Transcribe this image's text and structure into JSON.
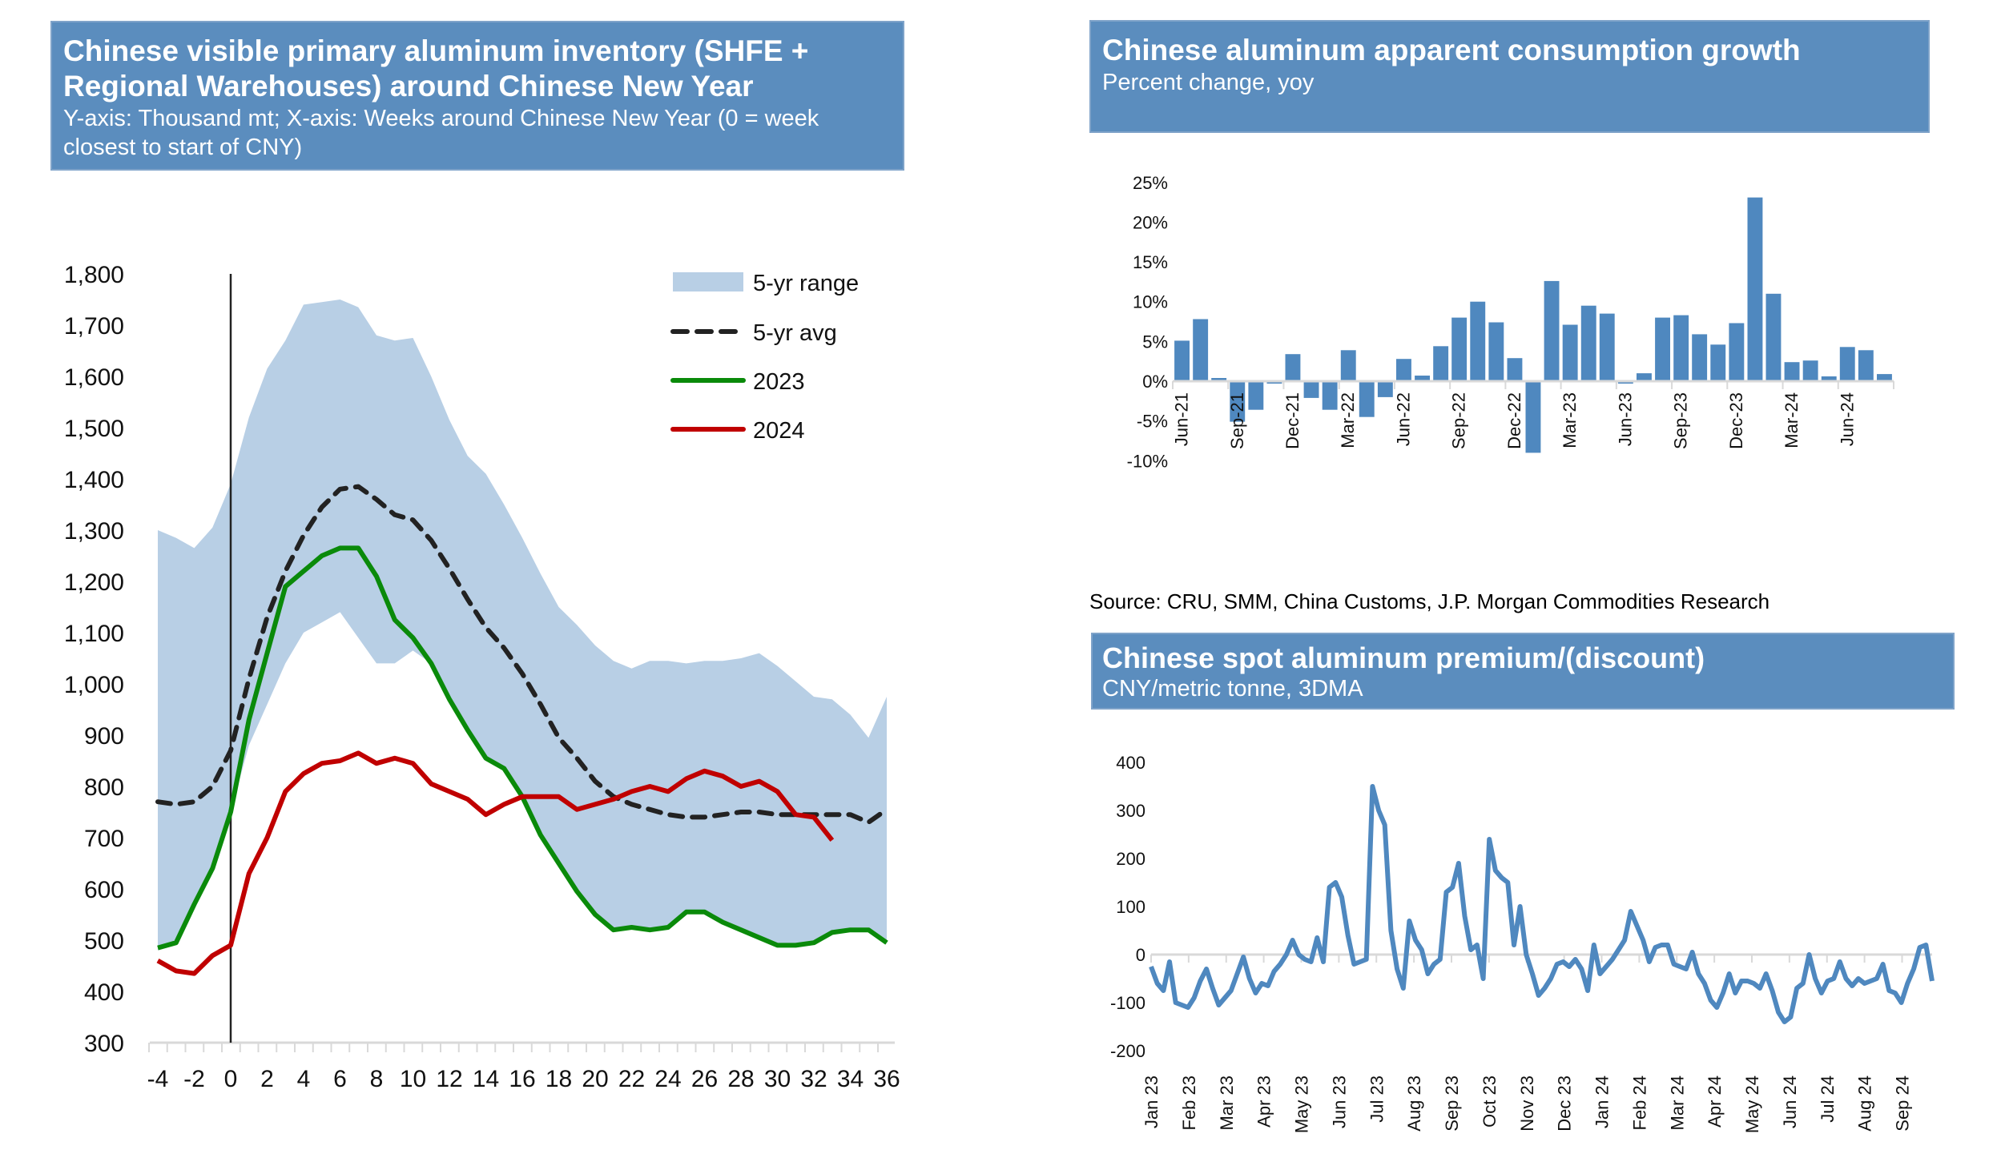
{
  "chart_data": [
    {
      "id": "inventory",
      "type": "line",
      "title": "Chinese visible primary aluminum inventory (SHFE + Regional Warehouses) around Chinese New Year",
      "subtitle": "Y-axis: Thousand mt; X-axis: Weeks around Chinese New Year (0 = week closest to start of CNY)",
      "xlabel": "",
      "ylabel": "",
      "ylim": [
        300,
        1800
      ],
      "xlim": [
        -4,
        36
      ],
      "yticks": [
        "300",
        "400",
        "500",
        "600",
        "700",
        "800",
        "900",
        "1,000",
        "1,100",
        "1,200",
        "1,300",
        "1,400",
        "1,500",
        "1,600",
        "1,700",
        "1,800"
      ],
      "ytick_values": [
        300,
        400,
        500,
        600,
        700,
        800,
        900,
        1000,
        1100,
        1200,
        1300,
        1400,
        1500,
        1600,
        1700,
        1800
      ],
      "xticks": [
        "-4",
        "-2",
        "0",
        "2",
        "4",
        "6",
        "8",
        "10",
        "12",
        "14",
        "16",
        "18",
        "20",
        "22",
        "24",
        "26",
        "28",
        "30",
        "32",
        "34",
        "36"
      ],
      "xtick_values": [
        -4,
        -2,
        0,
        2,
        4,
        6,
        8,
        10,
        12,
        14,
        16,
        18,
        20,
        22,
        24,
        26,
        28,
        30,
        32,
        34,
        36
      ],
      "vline_x": 0,
      "legend_position": "top-right",
      "x": [
        -4,
        -3,
        -2,
        -1,
        0,
        1,
        2,
        3,
        4,
        5,
        6,
        7,
        8,
        9,
        10,
        11,
        12,
        13,
        14,
        15,
        16,
        17,
        18,
        19,
        20,
        21,
        22,
        23,
        24,
        25,
        26,
        27,
        28,
        29,
        30,
        31,
        32,
        33,
        34,
        35,
        36
      ],
      "range": {
        "name": "5-yr range",
        "color": "#b8cfe5",
        "upper": [
          1300,
          1285,
          1265,
          1305,
          1390,
          1520,
          1615,
          1670,
          1740,
          1745,
          1750,
          1735,
          1680,
          1670,
          1675,
          1600,
          1515,
          1445,
          1410,
          1350,
          1285,
          1215,
          1150,
          1115,
          1075,
          1045,
          1030,
          1045,
          1045,
          1040,
          1045,
          1045,
          1050,
          1060,
          1035,
          1005,
          975,
          970,
          940,
          895,
          975
        ],
        "lower": [
          480,
          495,
          560,
          650,
          750,
          880,
          960,
          1040,
          1100,
          1120,
          1140,
          1090,
          1040,
          1040,
          1065,
          1040,
          970,
          910,
          855,
          835,
          780,
          705,
          650,
          595,
          550,
          520,
          525,
          520,
          525,
          555,
          555,
          535,
          520,
          505,
          490,
          490,
          495,
          515,
          520,
          520,
          495
        ]
      },
      "series": [
        {
          "name": "5-yr avg",
          "color": "#222222",
          "dashed": true,
          "values": [
            770,
            765,
            770,
            800,
            870,
            1010,
            1130,
            1220,
            1290,
            1345,
            1380,
            1385,
            1360,
            1330,
            1320,
            1280,
            1225,
            1165,
            1110,
            1070,
            1020,
            960,
            895,
            855,
            810,
            780,
            765,
            755,
            745,
            740,
            740,
            745,
            750,
            750,
            745,
            745,
            745,
            745,
            745,
            730,
            755
          ]
        },
        {
          "name": "2023",
          "color": "#0a8a0a",
          "dashed": false,
          "values": [
            485,
            495,
            570,
            640,
            750,
            930,
            1060,
            1190,
            1220,
            1250,
            1265,
            1265,
            1210,
            1125,
            1090,
            1040,
            970,
            910,
            855,
            835,
            780,
            705,
            650,
            595,
            550,
            520,
            525,
            520,
            525,
            555,
            555,
            535,
            520,
            505,
            490,
            490,
            495,
            515,
            520,
            520,
            495
          ]
        },
        {
          "name": "2024",
          "color": "#c00000",
          "dashed": false,
          "values": [
            460,
            440,
            435,
            470,
            490,
            630,
            700,
            790,
            825,
            845,
            850,
            865,
            845,
            855,
            845,
            805,
            790,
            775,
            745,
            765,
            780,
            780,
            780,
            755,
            765,
            775,
            790,
            800,
            790,
            815,
            830,
            820,
            800,
            810,
            790,
            745,
            740,
            695
          ]
        }
      ]
    },
    {
      "id": "consumption",
      "type": "bar",
      "title": "Chinese aluminum apparent consumption growth",
      "subtitle": "Percent change, yoy",
      "ylim": [
        -10,
        25
      ],
      "yticks": [
        "-10%",
        "-5%",
        "0%",
        "5%",
        "10%",
        "15%",
        "20%",
        "25%"
      ],
      "ytick_values": [
        -10,
        -5,
        0,
        5,
        10,
        15,
        20,
        25
      ],
      "color": "#4f88bf",
      "categories": [
        "Jun-21",
        "Jul-21",
        "Aug-21",
        "Sep-21",
        "Oct-21",
        "Nov-21",
        "Dec-21",
        "Jan-22",
        "Feb-22",
        "Mar-22",
        "Apr-22",
        "May-22",
        "Jun-22",
        "Jul-22",
        "Aug-22",
        "Sep-22",
        "Oct-22",
        "Nov-22",
        "Dec-22",
        "Jan-23",
        "Feb-23",
        "Mar-23",
        "Apr-23",
        "May-23",
        "Jun-23",
        "Jul-23",
        "Aug-23",
        "Sep-23",
        "Oct-23",
        "Nov-23",
        "Dec-23",
        "Jan-24",
        "Feb-24",
        "Mar-24",
        "Apr-24",
        "May-24",
        "Jun-24",
        "Jul-24",
        "Aug-24"
      ],
      "xtick_labels": [
        "Jun-21",
        "Sep-21",
        "Dec-21",
        "Mar-22",
        "Jun-22",
        "Sep-22",
        "Dec-22",
        "Mar-23",
        "Jun-23",
        "Sep-23",
        "Dec-23",
        "Mar-24",
        "Jun-24"
      ],
      "values": [
        5.1,
        7.8,
        0.4,
        -5.1,
        -3.6,
        -0.3,
        3.4,
        -2.1,
        -3.6,
        3.9,
        -4.5,
        -2.0,
        2.8,
        0.7,
        4.4,
        8.0,
        10.0,
        7.4,
        2.9,
        -9.0,
        12.6,
        7.1,
        9.5,
        8.5,
        -0.3,
        1.0,
        8.0,
        8.3,
        5.9,
        4.6,
        7.3,
        23.1,
        11.0,
        2.4,
        2.6,
        0.6,
        4.3,
        3.9,
        0.9
      ]
    },
    {
      "id": "premium",
      "type": "line",
      "title": "Chinese spot aluminum premium/(discount)",
      "subtitle": "CNY/metric tonne, 3DMA",
      "ylim": [
        -200,
        400
      ],
      "yticks": [
        "-200",
        "-100",
        "0",
        "100",
        "200",
        "300",
        "400"
      ],
      "ytick_values": [
        -200,
        -100,
        0,
        100,
        200,
        300,
        400
      ],
      "color": "#4f88bf",
      "xtick_labels": [
        "Jan 23",
        "Feb 23",
        "Mar 23",
        "Apr 23",
        "May 23",
        "Jun 23",
        "Jul 23",
        "Aug 23",
        "Sep 23",
        "Oct 23",
        "Nov 23",
        "Dec 23",
        "Jan 24",
        "Feb 24",
        "Mar 24",
        "Apr 24",
        "May 24",
        "Jun 24",
        "Jul 24",
        "Aug 24",
        "Sep 24"
      ],
      "x_range_months": [
        0,
        20.8
      ],
      "values": [
        -25,
        -60,
        -75,
        -15,
        -100,
        -105,
        -110,
        -90,
        -55,
        -30,
        -70,
        -105,
        -90,
        -75,
        -40,
        -5,
        -50,
        -80,
        -60,
        -65,
        -35,
        -20,
        0,
        30,
        0,
        -10,
        -15,
        35,
        -15,
        140,
        150,
        120,
        40,
        -20,
        -15,
        -10,
        350,
        300,
        270,
        50,
        -30,
        -70,
        70,
        30,
        10,
        -40,
        -20,
        -10,
        130,
        140,
        190,
        80,
        10,
        20,
        -50,
        240,
        175,
        160,
        150,
        20,
        100,
        0,
        -40,
        -85,
        -70,
        -50,
        -20,
        -15,
        -25,
        -10,
        -30,
        -75,
        20,
        -40,
        -25,
        -10,
        10,
        30,
        90,
        60,
        30,
        -15,
        15,
        20,
        20,
        -20,
        -25,
        -30,
        5,
        -40,
        -60,
        -95,
        -110,
        -80,
        -40,
        -80,
        -55,
        -55,
        -60,
        -70,
        -40,
        -75,
        -120,
        -140,
        -130,
        -70,
        -60,
        0,
        -50,
        -80,
        -55,
        -50,
        -15,
        -50,
        -65,
        -50,
        -60,
        -55,
        -50,
        -20,
        -75,
        -80,
        -100,
        -60,
        -30,
        15,
        20,
        -55
      ]
    }
  ],
  "legend": {
    "items": [
      {
        "label": "5-yr range",
        "kind": "area",
        "color": "#b8cfe5"
      },
      {
        "label": "5-yr avg",
        "kind": "dashed",
        "color": "#222222"
      },
      {
        "label": "2023",
        "kind": "line",
        "color": "#0a8a0a"
      },
      {
        "label": "2024",
        "kind": "line",
        "color": "#c00000"
      }
    ]
  },
  "headers": {
    "inventory": {
      "title_line1": "Chinese visible primary aluminum inventory (SHFE +",
      "title_line2": "Regional Warehouses) around Chinese New Year",
      "subtitle_line1": "Y-axis: Thousand mt; X-axis: Weeks around Chinese New Year (0 = week",
      "subtitle_line2": "closest to start of CNY)"
    },
    "consumption": {
      "title": "Chinese aluminum apparent consumption growth",
      "subtitle": "Percent change, yoy"
    },
    "premium": {
      "title": "Chinese spot aluminum premium/(discount)",
      "subtitle": "CNY/metric tonne, 3DMA"
    }
  },
  "source": "Source: CRU, SMM, China Customs, J.P. Morgan Commodities Research",
  "colors": {
    "header_bg": "#5b8dbe",
    "header_text": "#ffffff",
    "bar": "#4f88bf",
    "axis": "#d9d9d9"
  }
}
